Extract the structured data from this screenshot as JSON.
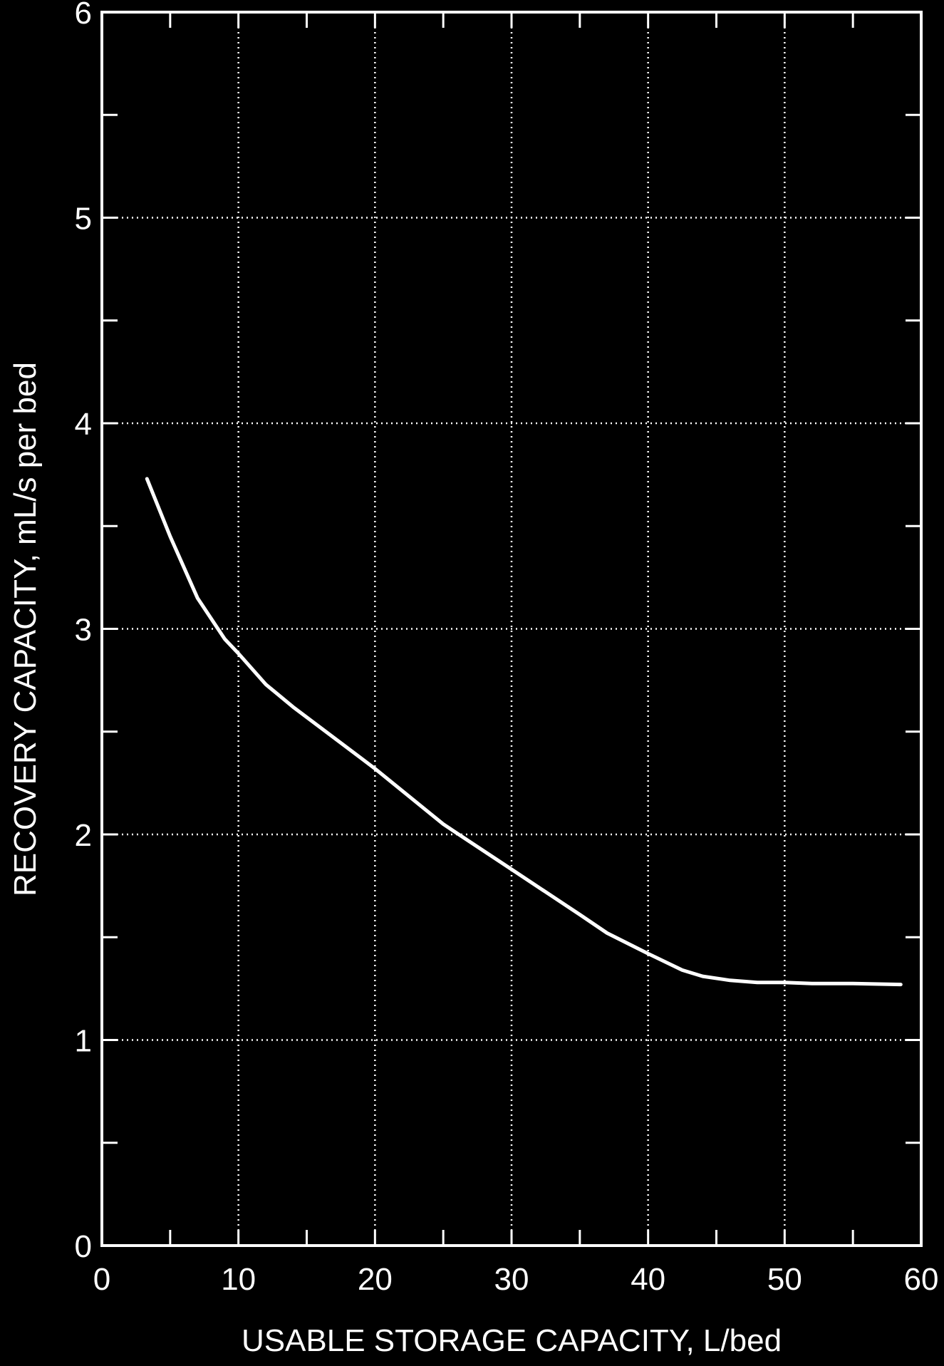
{
  "chart_data": {
    "type": "line",
    "title": "",
    "xlabel": "USABLE STORAGE CAPACITY, L/bed",
    "ylabel": "RECOVERY CAPACITY, mL/s per bed",
    "xlim": [
      0,
      60
    ],
    "ylim": [
      0,
      6
    ],
    "xticks": [
      "0",
      "10",
      "20",
      "30",
      "40",
      "50",
      "60"
    ],
    "yticks": [
      "0",
      "1",
      "2",
      "3",
      "4",
      "5",
      "6"
    ],
    "grid": true,
    "colors": {
      "background": "#000000",
      "foreground": "#ffffff"
    },
    "series": [
      {
        "x": [
          3.3,
          5,
          7,
          9,
          10,
          12,
          14,
          16,
          20,
          25,
          30,
          35,
          37,
          40,
          42.5,
          44,
          46,
          48,
          50,
          52,
          55,
          58.5
        ],
        "y": [
          3.73,
          3.45,
          3.15,
          2.95,
          2.88,
          2.73,
          2.62,
          2.52,
          2.32,
          2.05,
          1.83,
          1.61,
          1.52,
          1.42,
          1.34,
          1.31,
          1.29,
          1.28,
          1.28,
          1.275,
          1.275,
          1.27
        ]
      }
    ]
  }
}
